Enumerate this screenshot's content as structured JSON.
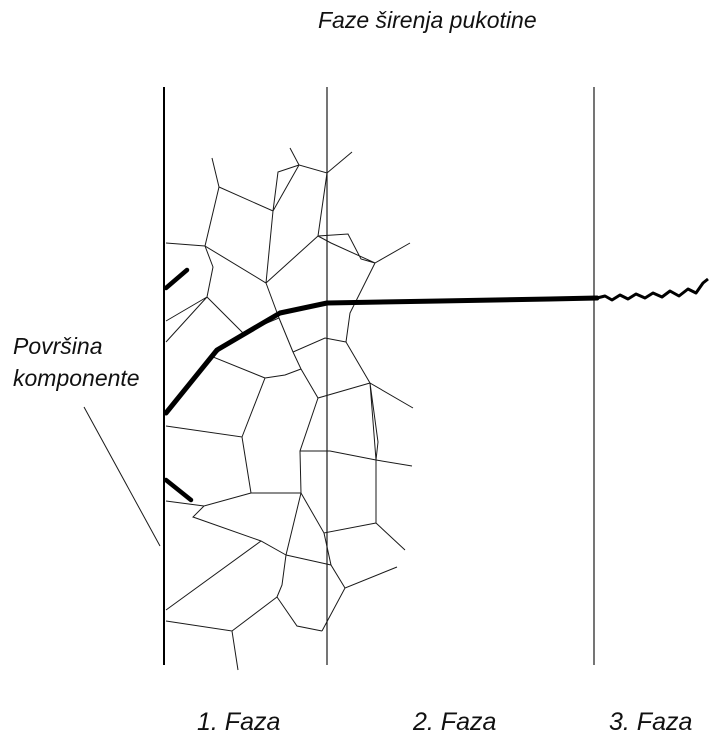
{
  "diagram": {
    "title": "Faze širenja pukotine",
    "surface_label": {
      "line1": "Površina",
      "line2": "komponente"
    },
    "phases": [
      {
        "label": "1. Faza"
      },
      {
        "label": "2. Faza"
      },
      {
        "label": "3. Faza"
      }
    ]
  }
}
